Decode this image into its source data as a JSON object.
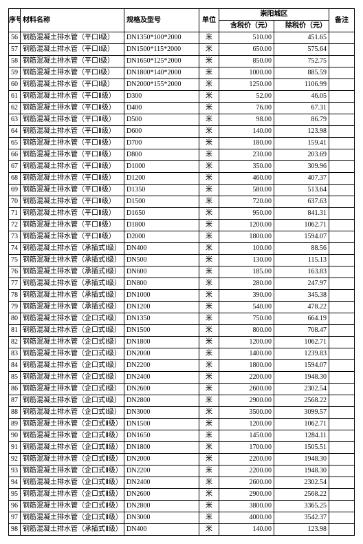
{
  "header": {
    "seq": "序号",
    "name": "材料名称",
    "spec": "规格及型号",
    "unit": "单位",
    "region": "崇阳城区",
    "price_tax": "含税价（元）",
    "price_notax": "除税价（元）",
    "note": "备注"
  },
  "rows": [
    {
      "seq": "56",
      "name": "钢筋混凝土排水管（平口Ⅰ级）",
      "spec": "DN1350*100*2000",
      "unit": "米",
      "p1": "510.00",
      "p2": "451.65",
      "note": ""
    },
    {
      "seq": "57",
      "name": "钢筋混凝土排水管（平口Ⅰ级）",
      "spec": "DN1500*115*2000",
      "unit": "米",
      "p1": "650.00",
      "p2": "575.64",
      "note": ""
    },
    {
      "seq": "58",
      "name": "钢筋混凝土排水管（平口Ⅰ级）",
      "spec": "DN1650*125*2000",
      "unit": "米",
      "p1": "850.00",
      "p2": "752.75",
      "note": ""
    },
    {
      "seq": "59",
      "name": "钢筋混凝土排水管（平口Ⅰ级）",
      "spec": "DN1800*140*2000",
      "unit": "米",
      "p1": "1000.00",
      "p2": "885.59",
      "note": ""
    },
    {
      "seq": "60",
      "name": "钢筋混凝土排水管（平口Ⅰ级）",
      "spec": "DN2000*155*2000",
      "unit": "米",
      "p1": "1250.00",
      "p2": "1106.99",
      "note": ""
    },
    {
      "seq": "61",
      "name": "钢筋混凝土排水管（平口Ⅱ级）",
      "spec": "D300",
      "unit": "米",
      "p1": "52.00",
      "p2": "46.05",
      "note": ""
    },
    {
      "seq": "62",
      "name": "钢筋混凝土排水管（平口Ⅱ级）",
      "spec": "D400",
      "unit": "米",
      "p1": "76.00",
      "p2": "67.31",
      "note": ""
    },
    {
      "seq": "63",
      "name": "钢筋混凝土排水管（平口Ⅱ级）",
      "spec": "D500",
      "unit": "米",
      "p1": "98.00",
      "p2": "86.79",
      "note": ""
    },
    {
      "seq": "64",
      "name": "钢筋混凝土排水管（平口Ⅱ级）",
      "spec": "D600",
      "unit": "米",
      "p1": "140.00",
      "p2": "123.98",
      "note": ""
    },
    {
      "seq": "65",
      "name": "钢筋混凝土排水管（平口Ⅱ级）",
      "spec": "D700",
      "unit": "米",
      "p1": "180.00",
      "p2": "159.41",
      "note": ""
    },
    {
      "seq": "66",
      "name": "钢筋混凝土排水管（平口Ⅱ级）",
      "spec": "D800",
      "unit": "米",
      "p1": "230.00",
      "p2": "203.69",
      "note": ""
    },
    {
      "seq": "67",
      "name": "钢筋混凝土排水管（平口Ⅱ级）",
      "spec": "D1000",
      "unit": "米",
      "p1": "350.00",
      "p2": "309.96",
      "note": ""
    },
    {
      "seq": "68",
      "name": "钢筋混凝土排水管（平口Ⅱ级）",
      "spec": "D1200",
      "unit": "米",
      "p1": "460.00",
      "p2": "407.37",
      "note": ""
    },
    {
      "seq": "69",
      "name": "钢筋混凝土排水管（平口Ⅱ级）",
      "spec": "D1350",
      "unit": "米",
      "p1": "580.00",
      "p2": "513.64",
      "note": ""
    },
    {
      "seq": "70",
      "name": "钢筋混凝土排水管（平口Ⅱ级）",
      "spec": "D1500",
      "unit": "米",
      "p1": "720.00",
      "p2": "637.63",
      "note": ""
    },
    {
      "seq": "71",
      "name": "钢筋混凝土排水管（平口Ⅱ级）",
      "spec": "D1650",
      "unit": "米",
      "p1": "950.00",
      "p2": "841.31",
      "note": ""
    },
    {
      "seq": "72",
      "name": "钢筋混凝土排水管（平口Ⅱ级）",
      "spec": "D1800",
      "unit": "米",
      "p1": "1200.00",
      "p2": "1062.71",
      "note": ""
    },
    {
      "seq": "73",
      "name": "钢筋混凝土排水管（平口Ⅱ级）",
      "spec": "D2000",
      "unit": "米",
      "p1": "1800.00",
      "p2": "1594.07",
      "note": ""
    },
    {
      "seq": "74",
      "name": "钢筋混凝土排水管（承插式Ⅰ级）",
      "spec": "DN400",
      "unit": "米",
      "p1": "100.00",
      "p2": "88.56",
      "note": ""
    },
    {
      "seq": "75",
      "name": "钢筋混凝土排水管（承插式Ⅰ级）",
      "spec": "DN500",
      "unit": "米",
      "p1": "130.00",
      "p2": "115.13",
      "note": ""
    },
    {
      "seq": "76",
      "name": "钢筋混凝土排水管（承插式Ⅰ级）",
      "spec": "DN600",
      "unit": "米",
      "p1": "185.00",
      "p2": "163.83",
      "note": ""
    },
    {
      "seq": "77",
      "name": "钢筋混凝土排水管（承插式Ⅰ级）",
      "spec": "DN800",
      "unit": "米",
      "p1": "280.00",
      "p2": "247.97",
      "note": ""
    },
    {
      "seq": "78",
      "name": "钢筋混凝土排水管（承插式Ⅰ级）",
      "spec": "DN1000",
      "unit": "米",
      "p1": "390.00",
      "p2": "345.38",
      "note": ""
    },
    {
      "seq": "79",
      "name": "钢筋混凝土排水管（承插式Ⅰ级）",
      "spec": "DN1200",
      "unit": "米",
      "p1": "540.00",
      "p2": "478.22",
      "note": ""
    },
    {
      "seq": "80",
      "name": "钢筋混凝土排水管（企口式Ⅰ级）",
      "spec": "DN1350",
      "unit": "米",
      "p1": "750.00",
      "p2": "664.19",
      "note": ""
    },
    {
      "seq": "81",
      "name": "钢筋混凝土排水管（企口式Ⅰ级）",
      "spec": "DN1500",
      "unit": "米",
      "p1": "800.00",
      "p2": "708.47",
      "note": ""
    },
    {
      "seq": "82",
      "name": "钢筋混凝土排水管（企口式Ⅰ级）",
      "spec": "DN1800",
      "unit": "米",
      "p1": "1200.00",
      "p2": "1062.71",
      "note": ""
    },
    {
      "seq": "83",
      "name": "钢筋混凝土排水管（企口式Ⅰ级）",
      "spec": "DN2000",
      "unit": "米",
      "p1": "1400.00",
      "p2": "1239.83",
      "note": ""
    },
    {
      "seq": "84",
      "name": "钢筋混凝土排水管（企口式Ⅰ级）",
      "spec": "DN2200",
      "unit": "米",
      "p1": "1800.00",
      "p2": "1594.07",
      "note": ""
    },
    {
      "seq": "85",
      "name": "钢筋混凝土排水管（企口式Ⅰ级）",
      "spec": "DN2400",
      "unit": "米",
      "p1": "2200.00",
      "p2": "1948.30",
      "note": ""
    },
    {
      "seq": "86",
      "name": "钢筋混凝土排水管（企口式Ⅰ级）",
      "spec": "DN2600",
      "unit": "米",
      "p1": "2600.00",
      "p2": "2302.54",
      "note": ""
    },
    {
      "seq": "87",
      "name": "钢筋混凝土排水管（企口式Ⅰ级）",
      "spec": "DN2800",
      "unit": "米",
      "p1": "2900.00",
      "p2": "2568.22",
      "note": ""
    },
    {
      "seq": "88",
      "name": "钢筋混凝土排水管（企口式Ⅰ级）",
      "spec": "DN3000",
      "unit": "米",
      "p1": "3500.00",
      "p2": "3099.57",
      "note": ""
    },
    {
      "seq": "89",
      "name": "钢筋混凝土排水管（企口式Ⅱ级）",
      "spec": "DN1500",
      "unit": "米",
      "p1": "1200.00",
      "p2": "1062.71",
      "note": ""
    },
    {
      "seq": "90",
      "name": "钢筋混凝土排水管（企口式Ⅱ级）",
      "spec": "DN1650",
      "unit": "米",
      "p1": "1450.00",
      "p2": "1284.11",
      "note": ""
    },
    {
      "seq": "91",
      "name": "钢筋混凝土排水管（企口式Ⅱ级）",
      "spec": "DN1800",
      "unit": "米",
      "p1": "1700.00",
      "p2": "1505.51",
      "note": ""
    },
    {
      "seq": "92",
      "name": "钢筋混凝土排水管（企口式Ⅱ级）",
      "spec": "DN2000",
      "unit": "米",
      "p1": "2200.00",
      "p2": "1948.30",
      "note": ""
    },
    {
      "seq": "93",
      "name": "钢筋混凝土排水管（企口式Ⅱ级）",
      "spec": "DN2200",
      "unit": "米",
      "p1": "2200.00",
      "p2": "1948.30",
      "note": ""
    },
    {
      "seq": "94",
      "name": "钢筋混凝土排水管（企口式Ⅱ级）",
      "spec": "DN2400",
      "unit": "米",
      "p1": "2600.00",
      "p2": "2302.54",
      "note": ""
    },
    {
      "seq": "95",
      "name": "钢筋混凝土排水管（企口式Ⅱ级）",
      "spec": "DN2600",
      "unit": "米",
      "p1": "2900.00",
      "p2": "2568.22",
      "note": ""
    },
    {
      "seq": "96",
      "name": "钢筋混凝土排水管（企口式Ⅱ级）",
      "spec": "DN2800",
      "unit": "米",
      "p1": "3800.00",
      "p2": "3365.25",
      "note": ""
    },
    {
      "seq": "97",
      "name": "钢筋混凝土排水管（企口式Ⅱ级）",
      "spec": "DN3000",
      "unit": "米",
      "p1": "4000.00",
      "p2": "3542.37",
      "note": ""
    },
    {
      "seq": "98",
      "name": "钢筋混凝土排水管（承插式Ⅱ级）",
      "spec": "DN400",
      "unit": "米",
      "p1": "140.00",
      "p2": "123.98",
      "note": ""
    }
  ]
}
